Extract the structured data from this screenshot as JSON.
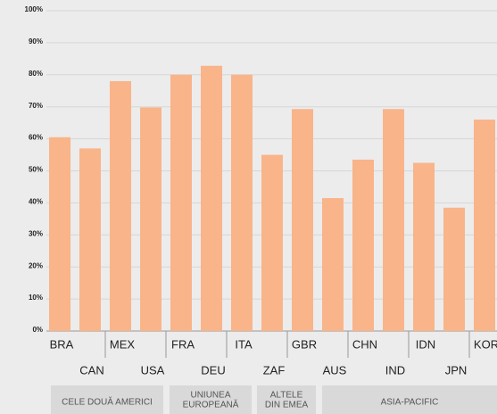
{
  "chart_data": {
    "type": "bar",
    "categories": [
      "BRA",
      "CAN",
      "MEX",
      "USA",
      "FRA",
      "DEU",
      "ITA",
      "ZAF",
      "GBR",
      "AUS",
      "CHN",
      "IND",
      "IDN",
      "JPN",
      "KOR"
    ],
    "values": [
      60.5,
      57,
      78,
      69.8,
      80,
      82.8,
      80,
      55,
      69.3,
      41.5,
      53.5,
      69.3,
      52.5,
      38.5,
      66
    ],
    "color": "#f9b48a",
    "ylim": [
      0,
      100
    ],
    "yticks": [
      {
        "value": 0,
        "label": "0%"
      },
      {
        "value": 10,
        "label": "10%"
      },
      {
        "value": 20,
        "label": "20%"
      },
      {
        "value": 30,
        "label": "30%"
      },
      {
        "value": 40,
        "label": "40%"
      },
      {
        "value": 50,
        "label": "50%"
      },
      {
        "value": 60,
        "label": "60%"
      },
      {
        "value": 70,
        "label": "70%"
      },
      {
        "value": 80,
        "label": "80%"
      },
      {
        "value": 90,
        "label": "90%"
      },
      {
        "value": 100,
        "label": "100%"
      }
    ],
    "grid": true,
    "groups": [
      [
        "CELE DOUĂ AMERICI"
      ],
      [
        "UNIUNEA",
        "EUROPEANĂ"
      ],
      [
        "ALTELE",
        "DIN EMEA"
      ],
      [
        "ASIA-PACIFIC"
      ]
    ]
  }
}
